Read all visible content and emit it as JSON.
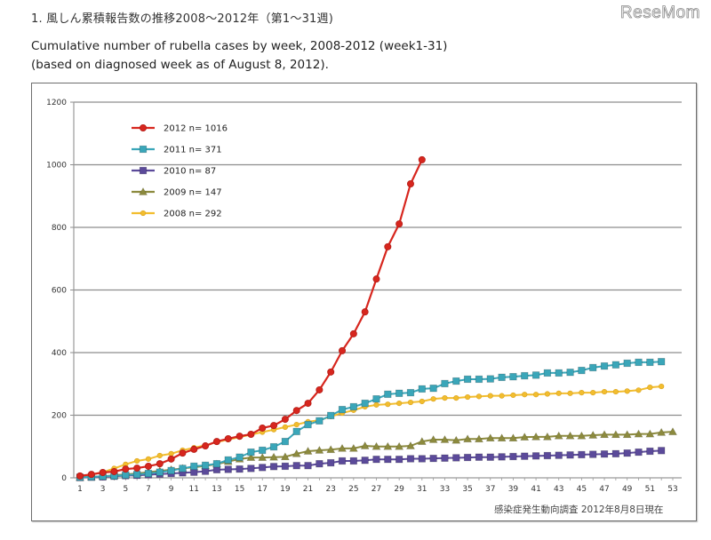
{
  "header": {
    "heading_jp": "1. 風しん累積報告数の推移2008～2012年（第1～31週)",
    "title_line1": "Cumulative number of rubella cases by week, 2008-2012 (week1-31)",
    "title_line2": "(based on diagnosed week as of August 8, 2012).",
    "logo": "ReseMom"
  },
  "source_note": "感染症発生動向調査 2012年8月8日現在",
  "chart_data": {
    "type": "line",
    "title": "Cumulative number of rubella cases by week, 2008-2012 (week1-31)",
    "xlabel": "",
    "ylabel": "",
    "xlim": [
      1,
      53
    ],
    "ylim": [
      0,
      1200
    ],
    "y_ticks": [
      0,
      200,
      400,
      600,
      800,
      1000,
      1200
    ],
    "x_ticks": [
      1,
      3,
      5,
      7,
      9,
      11,
      13,
      15,
      17,
      19,
      21,
      23,
      25,
      27,
      29,
      31,
      33,
      35,
      37,
      39,
      41,
      43,
      45,
      47,
      49,
      51,
      53
    ],
    "grid": "horizontal",
    "legend_position": "top-left",
    "series": [
      {
        "name": "2012",
        "label": "2012  n= 1016",
        "color": "#d7261e",
        "marker": "circle",
        "values": [
          6,
          11,
          17,
          20,
          28,
          31,
          37,
          45,
          60,
          79,
          91,
          102,
          116,
          125,
          133,
          139,
          159,
          167,
          187,
          215,
          238,
          281,
          338,
          406,
          460,
          530,
          635,
          738,
          811,
          939,
          1016
        ]
      },
      {
        "name": "2011",
        "label": "2011  n= 371",
        "color": "#3aa6b9",
        "marker": "square",
        "values": [
          2,
          3,
          5,
          6,
          9,
          11,
          14,
          18,
          23,
          30,
          37,
          40,
          45,
          57,
          66,
          82,
          88,
          99,
          116,
          148,
          170,
          182,
          199,
          218,
          227,
          238,
          252,
          267,
          270,
          272,
          284,
          286,
          301,
          309,
          315,
          315,
          316,
          321,
          323,
          326,
          328,
          335,
          335,
          337,
          343,
          352,
          357,
          361,
          366,
          369,
          369,
          371
        ]
      },
      {
        "name": "2010",
        "label": "2010  n= 87",
        "color": "#5b4a9a",
        "marker": "square",
        "values": [
          1,
          2,
          3,
          5,
          7,
          8,
          10,
          12,
          14,
          16,
          18,
          21,
          26,
          27,
          28,
          30,
          33,
          36,
          37,
          39,
          39,
          45,
          48,
          54,
          54,
          56,
          59,
          59,
          59,
          61,
          61,
          62,
          63,
          64,
          65,
          66,
          66,
          67,
          68,
          69,
          70,
          71,
          72,
          73,
          74,
          75,
          76,
          77,
          79,
          82,
          85,
          87
        ]
      },
      {
        "name": "2009",
        "label": "2009  n= 147",
        "color": "#8c8a3e",
        "marker": "triangle",
        "values": [
          1,
          3,
          5,
          8,
          11,
          14,
          18,
          22,
          26,
          30,
          34,
          38,
          44,
          52,
          60,
          65,
          65,
          66,
          67,
          77,
          85,
          88,
          90,
          94,
          94,
          102,
          100,
          100,
          100,
          102,
          116,
          122,
          122,
          120,
          124,
          124,
          127,
          127,
          127,
          130,
          131,
          131,
          134,
          134,
          134,
          136,
          138,
          138,
          138,
          140,
          140,
          145,
          147
        ]
      },
      {
        "name": "2008",
        "label": "2008  n= 292",
        "color": "#f2bd2e",
        "marker": "circle-small",
        "values": [
          5,
          10,
          18,
          30,
          43,
          54,
          60,
          71,
          77,
          88,
          96,
          104,
          114,
          122,
          130,
          138,
          146,
          154,
          162,
          170,
          179,
          184,
          196,
          207,
          216,
          227,
          233,
          235,
          238,
          241,
          244,
          252,
          255,
          255,
          258,
          260,
          262,
          262,
          264,
          266,
          266,
          268,
          270,
          270,
          272,
          272,
          275,
          275,
          277,
          280,
          289,
          292
        ]
      }
    ]
  }
}
